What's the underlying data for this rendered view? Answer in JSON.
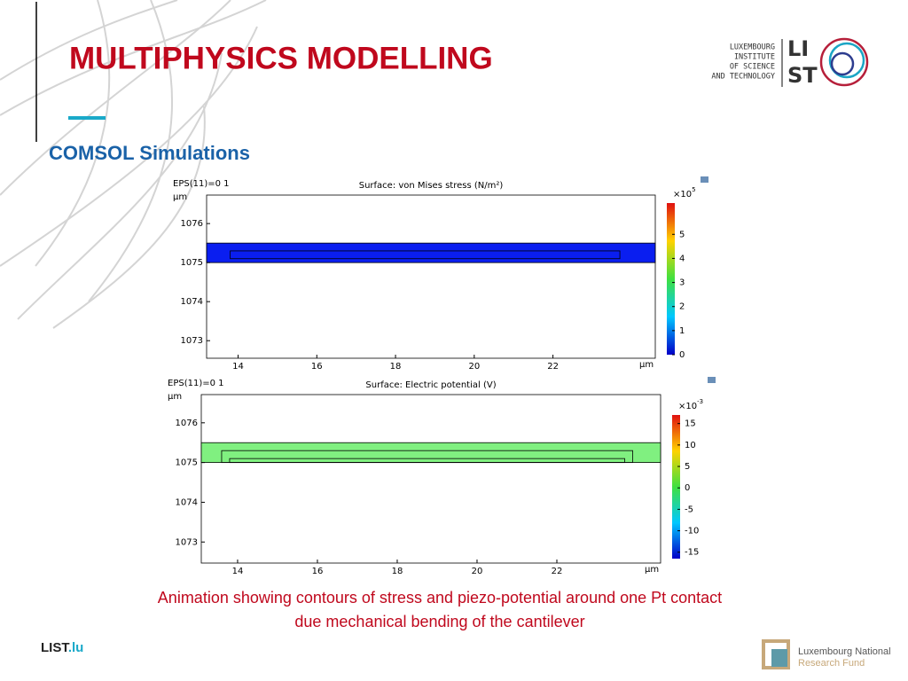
{
  "header": {
    "title": "MULTIPHYSICS MODELLING",
    "subtitle": "COMSOL Simulations"
  },
  "logo": {
    "lines": [
      "LUXEMBOURG",
      "INSTITUTE",
      "OF SCIENCE",
      "AND TECHNOLOGY"
    ],
    "mark_top": "LI",
    "mark_bottom": "ST"
  },
  "caption": [
    "Animation showing contours of stress and piezo-potential around one Pt contact",
    "due mechanical bending of the cantilever"
  ],
  "footer": {
    "site": "LIST",
    "site_suffix": ".lu",
    "fund": [
      "Luxembourg National",
      "Research Fund"
    ]
  },
  "chart_data": [
    {
      "type": "surface",
      "label": "EPS(11)=0 1",
      "title": "Surface: von Mises stress (N/m²)",
      "xlabel": "μm",
      "ylabel": "μm",
      "xlim": [
        13.2,
        24.6
      ],
      "xticks": [
        14,
        16,
        18,
        20,
        22
      ],
      "ylim": [
        1072.55,
        1076.73
      ],
      "yticks": [
        1073,
        1074,
        1075,
        1076
      ],
      "beam_y": [
        1075,
        1075.5
      ],
      "beam_color": "#0a1ef0",
      "contacts": [
        {
          "x": [
            13.8,
            23.7
          ],
          "y": [
            1075.1,
            1075.3
          ]
        }
      ],
      "colorbar_label": "×10",
      "colorbar_exponent": "5",
      "clim": [
        0,
        6.3
      ],
      "cticks": [
        0,
        1,
        2,
        3,
        4,
        5
      ]
    },
    {
      "type": "surface",
      "label": "EPS(11)=0 1",
      "title": "Surface: Electric potential (V)",
      "xlabel": "μm",
      "ylabel": "μm",
      "xlim": [
        13.09,
        24.6
      ],
      "xticks": [
        14,
        16,
        18,
        20,
        22
      ],
      "ylim": [
        1072.47,
        1076.71
      ],
      "yticks": [
        1073,
        1074,
        1075,
        1076
      ],
      "beam_y": [
        1075,
        1075.5
      ],
      "beam_color": "#80f080",
      "contacts": [
        {
          "x": [
            13.6,
            23.9
          ],
          "y": [
            1075,
            1075.3
          ]
        },
        {
          "x": [
            13.8,
            23.7
          ],
          "y": [
            1075,
            1075.1
          ]
        }
      ],
      "colorbar_label": "×10",
      "colorbar_exponent": "-3",
      "clim": [
        -16.5,
        17
      ],
      "cticks": [
        15,
        10,
        5,
        0,
        -5,
        -10,
        -15
      ]
    }
  ]
}
